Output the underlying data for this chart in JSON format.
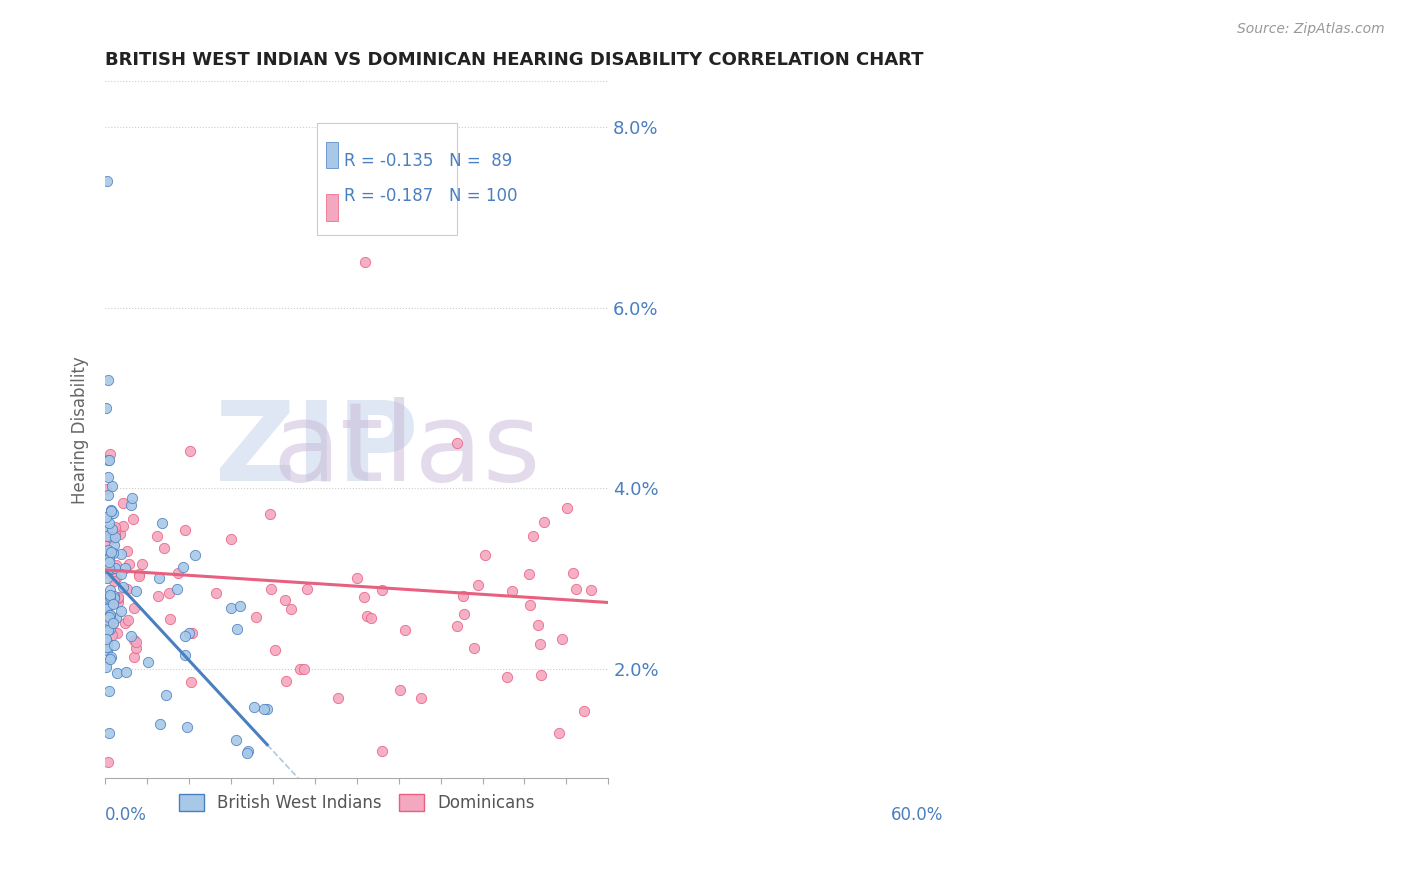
{
  "title": "BRITISH WEST INDIAN VS DOMINICAN HEARING DISABILITY CORRELATION CHART",
  "source": "Source: ZipAtlas.com",
  "ylabel": "Hearing Disability",
  "legend_r1": "R = -0.135",
  "legend_n1": "N =  89",
  "legend_r2": "R = -0.187",
  "legend_n2": "N = 100",
  "color_bwi": "#a8c8e8",
  "color_dom": "#f4a8c0",
  "color_bwi_line": "#4a7fc0",
  "color_dom_line": "#e86080",
  "color_dashed": "#b0c8e0",
  "background_color": "#ffffff",
  "xlim": [
    0.0,
    0.6
  ],
  "ylim": [
    0.008,
    0.085
  ],
  "yticks": [
    0.02,
    0.04,
    0.06,
    0.08
  ],
  "ytick_labels": [
    "2.0%",
    "4.0%",
    "6.0%",
    "8.0%"
  ],
  "watermark_zip_color": "#c8d8ec",
  "watermark_atlas_color": "#c8b8d8"
}
